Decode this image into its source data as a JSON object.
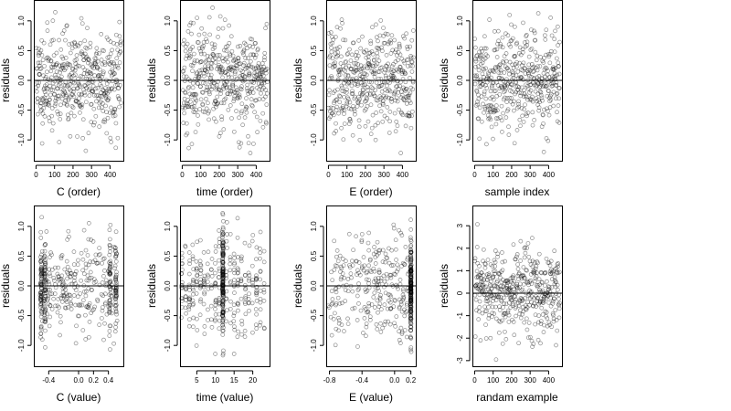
{
  "chart_data": [
    {
      "type": "scatter",
      "xlabel": "C (order)",
      "ylabel": "residuals",
      "xlim": [
        -12,
        472
      ],
      "ylim": [
        -1.35,
        1.35
      ],
      "xticks": [
        {
          "v": 0,
          "t": "0"
        },
        {
          "v": 100,
          "t": "100"
        },
        {
          "v": 200,
          "t": "200"
        },
        {
          "v": 300,
          "t": "300"
        },
        {
          "v": 400,
          "t": "400"
        }
      ],
      "yticks": [
        {
          "v": -1,
          "t": "-1.0"
        },
        {
          "v": -0.5,
          "t": "-0.5"
        },
        {
          "v": 0,
          "t": "0.0"
        },
        {
          "v": 0.5,
          "t": "0.5"
        },
        {
          "v": 1,
          "t": "1.0"
        }
      ],
      "hline": 0,
      "gen": "order",
      "seed": 11
    },
    {
      "type": "scatter",
      "xlabel": "time (order)",
      "ylabel": "residuals",
      "xlim": [
        -12,
        472
      ],
      "ylim": [
        -1.35,
        1.35
      ],
      "xticks": [
        {
          "v": 0,
          "t": "0"
        },
        {
          "v": 100,
          "t": "100"
        },
        {
          "v": 200,
          "t": "200"
        },
        {
          "v": 300,
          "t": "300"
        },
        {
          "v": 400,
          "t": "400"
        }
      ],
      "yticks": [
        {
          "v": -1,
          "t": "-1.0"
        },
        {
          "v": -0.5,
          "t": "-0.5"
        },
        {
          "v": 0,
          "t": "0.0"
        },
        {
          "v": 0.5,
          "t": "0.5"
        },
        {
          "v": 1,
          "t": "1.0"
        }
      ],
      "hline": 0,
      "gen": "order",
      "seed": 23
    },
    {
      "type": "scatter",
      "xlabel": "E (order)",
      "ylabel": "residuals",
      "xlim": [
        -12,
        472
      ],
      "ylim": [
        -1.35,
        1.35
      ],
      "xticks": [
        {
          "v": 0,
          "t": "0"
        },
        {
          "v": 100,
          "t": "100"
        },
        {
          "v": 200,
          "t": "200"
        },
        {
          "v": 300,
          "t": "300"
        },
        {
          "v": 400,
          "t": "400"
        }
      ],
      "yticks": [
        {
          "v": -1,
          "t": "-1.0"
        },
        {
          "v": -0.5,
          "t": "-0.5"
        },
        {
          "v": 0,
          "t": "0.0"
        },
        {
          "v": 0.5,
          "t": "0.5"
        },
        {
          "v": 1,
          "t": "1.0"
        }
      ],
      "hline": 0,
      "gen": "order",
      "seed": 37
    },
    {
      "type": "scatter",
      "xlabel": "sample index",
      "ylabel": "residuals",
      "xlim": [
        -12,
        472
      ],
      "ylim": [
        -1.35,
        1.35
      ],
      "xticks": [
        {
          "v": 0,
          "t": "0"
        },
        {
          "v": 100,
          "t": "100"
        },
        {
          "v": 200,
          "t": "200"
        },
        {
          "v": 300,
          "t": "300"
        },
        {
          "v": 400,
          "t": "400"
        }
      ],
      "yticks": [
        {
          "v": -1,
          "t": "-1.0"
        },
        {
          "v": -0.5,
          "t": "-0.5"
        },
        {
          "v": 0,
          "t": "0.0"
        },
        {
          "v": 0.5,
          "t": "0.5"
        },
        {
          "v": 1,
          "t": "1.0"
        }
      ],
      "hline": 0,
      "gen": "order",
      "seed": 41
    },
    {
      "type": "scatter",
      "xlabel": "C (value)",
      "ylabel": "residuals",
      "xlim": [
        -0.6,
        0.6
      ],
      "ylim": [
        -1.35,
        1.35
      ],
      "xticks": [
        {
          "v": -0.4,
          "t": "-0.4"
        },
        {
          "v": 0,
          "t": "0.0"
        },
        {
          "v": 0.2,
          "t": "0.2"
        },
        {
          "v": 0.4,
          "t": "0.4"
        }
      ],
      "yticks": [
        {
          "v": -1,
          "t": "-1.0"
        },
        {
          "v": -0.5,
          "t": "-0.5"
        },
        {
          "v": 0,
          "t": "0.0"
        },
        {
          "v": 0.5,
          "t": "0.5"
        },
        {
          "v": 1,
          "t": "1.0"
        }
      ],
      "hline": 0,
      "gen": "cval",
      "seed": 53
    },
    {
      "type": "scatter",
      "xlabel": "time (value)",
      "ylabel": "residuals",
      "xlim": [
        0.5,
        24.5
      ],
      "ylim": [
        -1.35,
        1.35
      ],
      "xticks": [
        {
          "v": 5,
          "t": "5"
        },
        {
          "v": 10,
          "t": "10"
        },
        {
          "v": 15,
          "t": "15"
        },
        {
          "v": 20,
          "t": "20"
        }
      ],
      "yticks": [
        {
          "v": -1,
          "t": "-1.0"
        },
        {
          "v": -0.5,
          "t": "-0.5"
        },
        {
          "v": 0,
          "t": "0.0"
        },
        {
          "v": 0.5,
          "t": "0.5"
        },
        {
          "v": 1,
          "t": "1.0"
        }
      ],
      "hline": 0,
      "gen": "tval",
      "seed": 67
    },
    {
      "type": "scatter",
      "xlabel": "E (value)",
      "ylabel": "residuals",
      "xlim": [
        -0.84,
        0.26
      ],
      "ylim": [
        -1.35,
        1.35
      ],
      "xticks": [
        {
          "v": -0.8,
          "t": "-0.8"
        },
        {
          "v": -0.4,
          "t": "-0.4"
        },
        {
          "v": 0,
          "t": "0.0"
        },
        {
          "v": 0.2,
          "t": "0.2"
        }
      ],
      "yticks": [
        {
          "v": -1,
          "t": "-1.0"
        },
        {
          "v": -0.5,
          "t": "-0.5"
        },
        {
          "v": 0,
          "t": "0.0"
        },
        {
          "v": 0.5,
          "t": "0.5"
        },
        {
          "v": 1,
          "t": "1.0"
        }
      ],
      "hline": 0,
      "gen": "eval",
      "seed": 79
    },
    {
      "type": "scatter",
      "xlabel": "randam example",
      "ylabel": "residuals",
      "xlim": [
        -12,
        472
      ],
      "ylim": [
        -3.25,
        3.9
      ],
      "xticks": [
        {
          "v": 0,
          "t": "0"
        },
        {
          "v": 100,
          "t": "100"
        },
        {
          "v": 200,
          "t": "200"
        },
        {
          "v": 300,
          "t": "300"
        },
        {
          "v": 400,
          "t": "400"
        }
      ],
      "yticks": [
        {
          "v": -3,
          "t": "-3"
        },
        {
          "v": -2,
          "t": "-2"
        },
        {
          "v": -1,
          "t": "-1"
        },
        {
          "v": 0,
          "t": "0"
        },
        {
          "v": 1,
          "t": "1"
        },
        {
          "v": 2,
          "t": "2"
        },
        {
          "v": 3,
          "t": "3"
        }
      ],
      "hline": 0,
      "gen": "random",
      "seed": 97
    }
  ],
  "colors": {
    "point": "#000000",
    "axis": "#000000",
    "background": "#ffffff"
  }
}
